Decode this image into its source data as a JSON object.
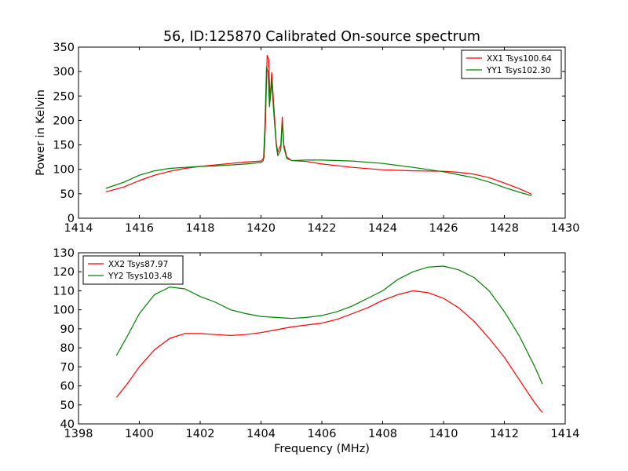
{
  "chart_data": [
    {
      "type": "line",
      "title": "56, ID:125870 Calibrated On-source spectrum",
      "xlabel": "",
      "ylabel": "Power in Kelvin",
      "xlim": [
        1414,
        1430
      ],
      "ylim": [
        0,
        350
      ],
      "xticks": [
        1414,
        1416,
        1418,
        1420,
        1422,
        1424,
        1426,
        1428,
        1430
      ],
      "yticks": [
        0,
        50,
        100,
        150,
        200,
        250,
        300,
        350
      ],
      "legend_position": "top-right",
      "grid": false,
      "series": [
        {
          "name": "XX1 Tsys100.64",
          "color": "#ff0000",
          "points": [
            [
              1414.9,
              54
            ],
            [
              1415.5,
              64
            ],
            [
              1416,
              77
            ],
            [
              1416.5,
              88
            ],
            [
              1417,
              96
            ],
            [
              1417.5,
              102
            ],
            [
              1418,
              106
            ],
            [
              1418.5,
              109
            ],
            [
              1419,
              112
            ],
            [
              1419.5,
              115
            ],
            [
              1420,
              117
            ],
            [
              1420.1,
              124
            ],
            [
              1420.15,
              200
            ],
            [
              1420.2,
              333
            ],
            [
              1420.25,
              326
            ],
            [
              1420.3,
              240
            ],
            [
              1420.35,
              298
            ],
            [
              1420.42,
              230
            ],
            [
              1420.5,
              155
            ],
            [
              1420.55,
              135
            ],
            [
              1420.65,
              150
            ],
            [
              1420.7,
              207
            ],
            [
              1420.75,
              150
            ],
            [
              1420.85,
              125
            ],
            [
              1421,
              118
            ],
            [
              1421.5,
              116
            ],
            [
              1422,
              111
            ],
            [
              1423,
              104
            ],
            [
              1424,
              99
            ],
            [
              1425,
              97
            ],
            [
              1426,
              96
            ],
            [
              1426.5,
              94
            ],
            [
              1427,
              90
            ],
            [
              1427.5,
              83
            ],
            [
              1428,
              72
            ],
            [
              1428.5,
              60
            ],
            [
              1428.9,
              49
            ]
          ]
        },
        {
          "name": "YY1 Tsys102.30",
          "color": "#008000",
          "points": [
            [
              1414.9,
              61
            ],
            [
              1415.5,
              74
            ],
            [
              1416,
              88
            ],
            [
              1416.5,
              97
            ],
            [
              1417,
              102
            ],
            [
              1417.5,
              104
            ],
            [
              1418,
              106
            ],
            [
              1418.5,
              107
            ],
            [
              1419,
              109
            ],
            [
              1419.5,
              111
            ],
            [
              1420,
              114
            ],
            [
              1420.08,
              118
            ],
            [
              1420.13,
              190
            ],
            [
              1420.18,
              309
            ],
            [
              1420.23,
              300
            ],
            [
              1420.28,
              228
            ],
            [
              1420.35,
              280
            ],
            [
              1420.42,
              215
            ],
            [
              1420.5,
              150
            ],
            [
              1420.55,
              128
            ],
            [
              1420.65,
              140
            ],
            [
              1420.7,
              198
            ],
            [
              1420.75,
              145
            ],
            [
              1420.85,
              122
            ],
            [
              1421,
              118
            ],
            [
              1421.5,
              119
            ],
            [
              1422,
              119
            ],
            [
              1423,
              117
            ],
            [
              1424,
              112
            ],
            [
              1425,
              104
            ],
            [
              1426,
              95
            ],
            [
              1426.5,
              89
            ],
            [
              1427,
              83
            ],
            [
              1427.5,
              74
            ],
            [
              1428,
              63
            ],
            [
              1428.5,
              53
            ],
            [
              1428.9,
              46
            ]
          ]
        }
      ]
    },
    {
      "type": "line",
      "title": "",
      "xlabel": "Frequency (MHz)",
      "ylabel": "",
      "xlim": [
        1398,
        1414
      ],
      "ylim": [
        40,
        130
      ],
      "xticks": [
        1398,
        1400,
        1402,
        1404,
        1406,
        1408,
        1410,
        1412,
        1414
      ],
      "yticks": [
        40,
        50,
        60,
        70,
        80,
        90,
        100,
        110,
        120,
        130
      ],
      "legend_position": "top-left",
      "grid": false,
      "series": [
        {
          "name": "XX2 Tsys87.97",
          "color": "#ff0000",
          "points": [
            [
              1399.25,
              54
            ],
            [
              1399.6,
              61
            ],
            [
              1400,
              70
            ],
            [
              1400.5,
              79
            ],
            [
              1401,
              85
            ],
            [
              1401.5,
              87.5
            ],
            [
              1402,
              87.5
            ],
            [
              1402.5,
              87
            ],
            [
              1403,
              86.5
            ],
            [
              1403.5,
              87
            ],
            [
              1404,
              88
            ],
            [
              1404.5,
              89.5
            ],
            [
              1405,
              91
            ],
            [
              1405.5,
              92
            ],
            [
              1406,
              93
            ],
            [
              1406.5,
              95
            ],
            [
              1407,
              98
            ],
            [
              1407.5,
              101
            ],
            [
              1408,
              105
            ],
            [
              1408.5,
              108
            ],
            [
              1409,
              110
            ],
            [
              1409.5,
              109
            ],
            [
              1410,
              106
            ],
            [
              1410.5,
              101
            ],
            [
              1411,
              94
            ],
            [
              1411.5,
              85
            ],
            [
              1412,
              75
            ],
            [
              1412.5,
              63
            ],
            [
              1413,
              51
            ],
            [
              1413.25,
              46
            ]
          ]
        },
        {
          "name": "YY2 Tsys103.48",
          "color": "#008000",
          "points": [
            [
              1399.25,
              76
            ],
            [
              1399.6,
              86
            ],
            [
              1400,
              98
            ],
            [
              1400.5,
              108
            ],
            [
              1401,
              112
            ],
            [
              1401.5,
              111
            ],
            [
              1402,
              107
            ],
            [
              1402.5,
              104
            ],
            [
              1403,
              100
            ],
            [
              1403.5,
              98
            ],
            [
              1404,
              96.5
            ],
            [
              1404.5,
              96
            ],
            [
              1405,
              95.5
            ],
            [
              1405.5,
              96
            ],
            [
              1406,
              97
            ],
            [
              1406.5,
              99
            ],
            [
              1407,
              102
            ],
            [
              1407.5,
              106
            ],
            [
              1408,
              110
            ],
            [
              1408.5,
              116
            ],
            [
              1409,
              120
            ],
            [
              1409.5,
              122.5
            ],
            [
              1410,
              123
            ],
            [
              1410.5,
              121
            ],
            [
              1411,
              117
            ],
            [
              1411.5,
              110
            ],
            [
              1412,
              99
            ],
            [
              1412.5,
              86
            ],
            [
              1413,
              70
            ],
            [
              1413.25,
              61
            ]
          ]
        }
      ]
    }
  ]
}
